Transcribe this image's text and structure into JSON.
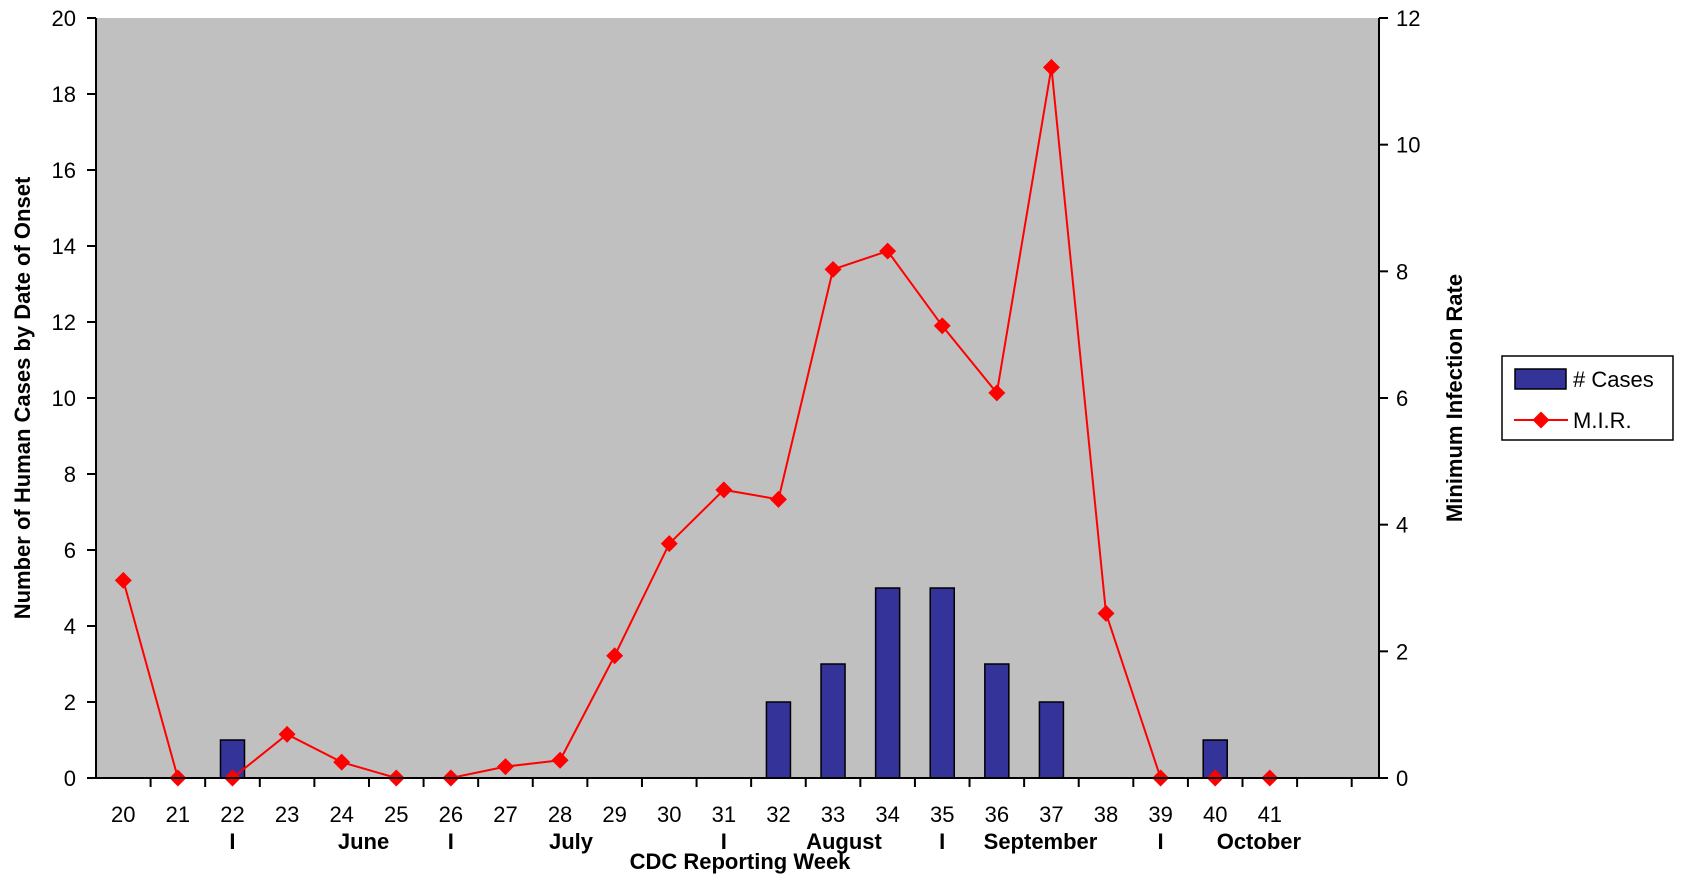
{
  "chart_data": {
    "type": "bar",
    "title": "",
    "xlabel": "CDC Reporting Week",
    "ylabel": "Number of Human Cases by Date of Onset",
    "y2label": "Minimum Infection Rate",
    "categories": [
      "20",
      "21",
      "22",
      "23",
      "24",
      "25",
      "26",
      "27",
      "28",
      "29",
      "30",
      "31",
      "32",
      "33",
      "34",
      "35",
      "36",
      "37",
      "38",
      "39",
      "40",
      "41"
    ],
    "month_labels": [
      {
        "text": "I",
        "at": 22
      },
      {
        "text": "June",
        "at": 24.4
      },
      {
        "text": "I",
        "at": 26
      },
      {
        "text": "July",
        "at": 28.2
      },
      {
        "text": "I",
        "at": 31
      },
      {
        "text": "August",
        "at": 33.2
      },
      {
        "text": "I",
        "at": 35
      },
      {
        "text": "September",
        "at": 36.8
      },
      {
        "text": "I",
        "at": 39
      },
      {
        "text": "October",
        "at": 40.8
      }
    ],
    "ylim": [
      0,
      20
    ],
    "yticks": [
      0,
      2,
      4,
      6,
      8,
      10,
      12,
      14,
      16,
      18,
      20
    ],
    "y2lim": [
      0,
      12
    ],
    "y2ticks": [
      0,
      2,
      4,
      6,
      8,
      10,
      12
    ],
    "grid": false,
    "legend_position": "right",
    "background_color": "#c0c0c0",
    "series": [
      {
        "name": "# Cases",
        "type": "bar",
        "axis": "left",
        "color": "#333399",
        "values": [
          0,
          0,
          1,
          0,
          0,
          0,
          0,
          0,
          0,
          0,
          0,
          0,
          2,
          3,
          5,
          5,
          3,
          2,
          0,
          0,
          1,
          0
        ]
      },
      {
        "name": "M.I.R.",
        "type": "line",
        "axis": "right",
        "color": "#ff0000",
        "values": [
          3.12,
          0,
          0,
          0.69,
          0.25,
          0,
          0,
          0.18,
          0.28,
          1.93,
          3.7,
          4.55,
          4.4,
          8.03,
          8.32,
          7.14,
          6.08,
          11.22,
          2.6,
          0,
          0,
          0
        ]
      }
    ]
  }
}
